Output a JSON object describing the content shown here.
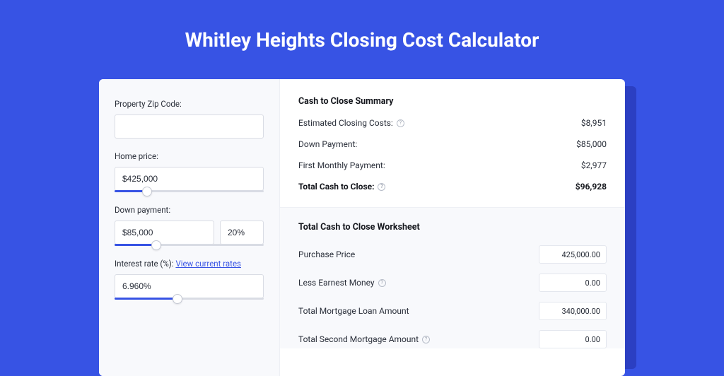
{
  "page": {
    "title": "Whitley Heights Closing Cost Calculator",
    "background_color": "#3753e4",
    "card_background": "#ffffff",
    "panel_background": "#f8f9fc"
  },
  "inputs": {
    "zip_label": "Property Zip Code:",
    "zip_value": "",
    "home_price_label": "Home price:",
    "home_price_value": "$425,000",
    "home_price_slider_pct": 22,
    "down_payment_label": "Down payment:",
    "down_payment_value": "$85,000",
    "down_payment_pct": "20%",
    "down_payment_slider_pct": 28,
    "interest_label": "Interest rate (%):",
    "interest_link": "View current rates",
    "interest_value": "6.960%",
    "interest_slider_pct": 42
  },
  "summary": {
    "title": "Cash to Close Summary",
    "rows": [
      {
        "label": "Estimated Closing Costs:",
        "help": true,
        "value": "$8,951",
        "bold": false
      },
      {
        "label": "Down Payment:",
        "help": false,
        "value": "$85,000",
        "bold": false
      },
      {
        "label": "First Monthly Payment:",
        "help": false,
        "value": "$2,977",
        "bold": false
      },
      {
        "label": "Total Cash to Close:",
        "help": true,
        "value": "$96,928",
        "bold": true
      }
    ]
  },
  "worksheet": {
    "title": "Total Cash to Close Worksheet",
    "rows": [
      {
        "label": "Purchase Price",
        "help": false,
        "value": "425,000.00"
      },
      {
        "label": "Less Earnest Money",
        "help": true,
        "value": "0.00"
      },
      {
        "label": "Total Mortgage Loan Amount",
        "help": false,
        "value": "340,000.00"
      },
      {
        "label": "Total Second Mortgage Amount",
        "help": true,
        "value": "0.00"
      }
    ]
  },
  "colors": {
    "accent": "#3753e4",
    "text_primary": "#14161c",
    "text_body": "#2a2f3a",
    "border": "#d9dce4",
    "border_light": "#e4e7ee",
    "muted": "#9aa0ad"
  }
}
